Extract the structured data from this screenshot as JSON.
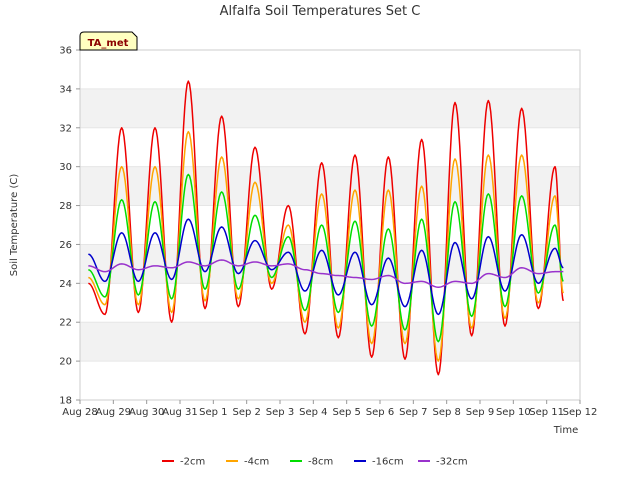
{
  "chart_data": {
    "type": "line",
    "title": "Alfalfa Soil Temperatures Set C",
    "xlabel": "Time",
    "ylabel": "Soil Temperature (C)",
    "xlim": [
      "Aug 28",
      "Sep 12"
    ],
    "ylim": [
      18,
      36
    ],
    "x_ticks": [
      "Aug 28",
      "Aug 29",
      "Aug 30",
      "Aug 31",
      "Sep 1",
      "Sep 2",
      "Sep 3",
      "Sep 4",
      "Sep 5",
      "Sep 6",
      "Sep 7",
      "Sep 8",
      "Sep 9",
      "Sep 10",
      "Sep 11",
      "Sep 12"
    ],
    "y_ticks": [
      18,
      20,
      22,
      24,
      26,
      28,
      30,
      32,
      34,
      36
    ],
    "grid": "horizontal bands",
    "badge": "TA_met",
    "legend_position": "bottom",
    "x": [
      "Aug 28 06:00",
      "Aug 28 18:00",
      "Aug 29 06:00",
      "Aug 29 18:00",
      "Aug 30 06:00",
      "Aug 30 18:00",
      "Aug 31 06:00",
      "Aug 31 18:00",
      "Sep 1 06:00",
      "Sep 1 18:00",
      "Sep 2 06:00",
      "Sep 2 18:00",
      "Sep 3 06:00",
      "Sep 3 18:00",
      "Sep 4 06:00",
      "Sep 4 18:00",
      "Sep 5 06:00",
      "Sep 5 18:00",
      "Sep 6 06:00",
      "Sep 6 18:00",
      "Sep 7 06:00",
      "Sep 7 18:00",
      "Sep 8 06:00",
      "Sep 8 18:00",
      "Sep 9 06:00",
      "Sep 9 18:00",
      "Sep 10 06:00",
      "Sep 10 18:00",
      "Sep 11 06:00",
      "Sep 11 12:00"
    ],
    "series": [
      {
        "name": "-2cm",
        "color": "#ee0000",
        "values": [
          24.0,
          22.4,
          32.0,
          22.5,
          32.0,
          22.0,
          34.4,
          22.7,
          32.6,
          22.8,
          31.0,
          23.7,
          28.0,
          21.4,
          30.2,
          21.2,
          30.6,
          20.2,
          30.5,
          20.1,
          31.4,
          19.3,
          33.3,
          21.3,
          33.4,
          21.8,
          33.0,
          22.7,
          30.0,
          23.1
        ]
      },
      {
        "name": "-4cm",
        "color": "#ffa500",
        "values": [
          24.3,
          22.9,
          30.0,
          22.9,
          30.0,
          22.5,
          31.8,
          23.1,
          30.5,
          23.2,
          29.2,
          24.0,
          27.0,
          22.0,
          28.6,
          21.7,
          28.8,
          20.9,
          28.8,
          20.9,
          29.0,
          20.0,
          30.4,
          21.7,
          30.6,
          22.2,
          30.6,
          23.0,
          28.5,
          23.5
        ]
      },
      {
        "name": "-8cm",
        "color": "#00dd00",
        "values": [
          24.7,
          23.3,
          28.3,
          23.4,
          28.2,
          23.2,
          29.6,
          23.7,
          28.7,
          23.7,
          27.5,
          24.3,
          26.4,
          22.6,
          27.0,
          22.5,
          27.2,
          21.8,
          26.8,
          21.6,
          27.3,
          21.0,
          28.2,
          22.3,
          28.6,
          22.8,
          28.5,
          23.5,
          27.0,
          24.1
        ]
      },
      {
        "name": "-16cm",
        "color": "#0000cc",
        "values": [
          25.5,
          24.1,
          26.6,
          24.1,
          26.6,
          24.2,
          27.3,
          24.6,
          26.9,
          24.5,
          26.2,
          24.7,
          25.6,
          23.6,
          25.7,
          23.4,
          25.6,
          22.9,
          25.3,
          22.8,
          25.7,
          22.4,
          26.1,
          23.2,
          26.4,
          23.6,
          26.5,
          24.0,
          25.8,
          24.8
        ]
      },
      {
        "name": "-32cm",
        "color": "#9933cc",
        "values": [
          24.9,
          24.6,
          25.0,
          24.7,
          24.9,
          24.8,
          25.1,
          24.9,
          25.2,
          24.9,
          25.1,
          24.9,
          25.0,
          24.7,
          24.5,
          24.4,
          24.3,
          24.2,
          24.4,
          24.0,
          24.1,
          23.8,
          24.1,
          24.0,
          24.5,
          24.3,
          24.8,
          24.5,
          24.6,
          24.6
        ]
      }
    ]
  }
}
